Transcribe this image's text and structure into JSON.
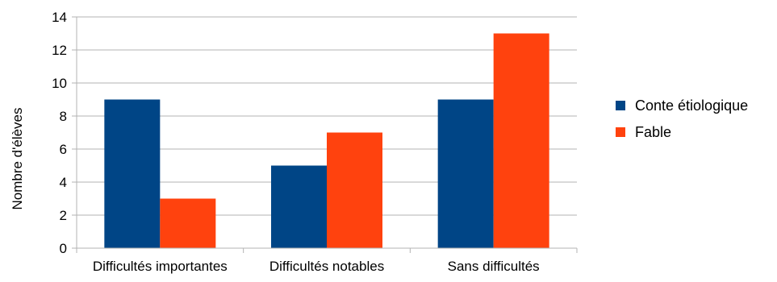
{
  "chart_data": {
    "type": "bar",
    "title": "",
    "xlabel": "",
    "ylabel": "Nombre d'élèves",
    "categories": [
      "Difficultés importantes",
      "Difficultés notables",
      "Sans difficultés"
    ],
    "series": [
      {
        "name": "Conte étiologique",
        "values": [
          9,
          5,
          9
        ],
        "color": "#004586"
      },
      {
        "name": "Fable",
        "values": [
          3,
          7,
          13
        ],
        "color": "#ff420e"
      }
    ],
    "ylim": [
      0,
      14
    ],
    "yticks": [
      0,
      2,
      4,
      6,
      8,
      10,
      12,
      14
    ],
    "grid": true,
    "legend_position": "right"
  }
}
